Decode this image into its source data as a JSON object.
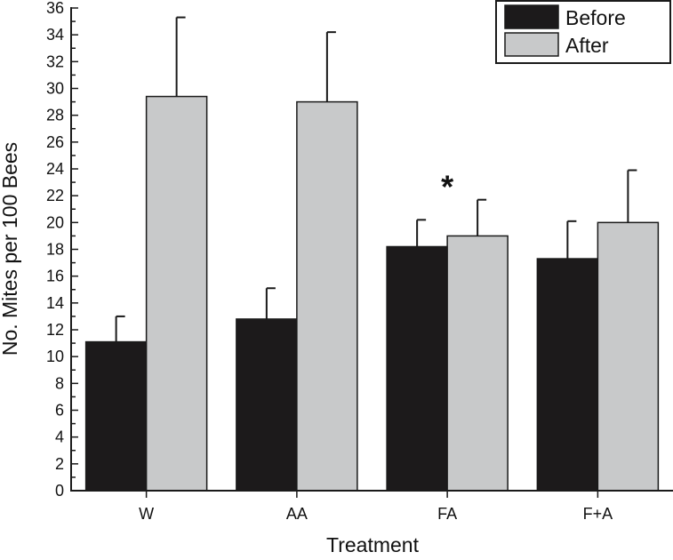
{
  "chart_data": {
    "type": "bar",
    "title": "",
    "xlabel": "Treatment",
    "ylabel": "No. Mites per 100 Bees",
    "ylim": [
      0,
      36
    ],
    "yticks": [
      0,
      2,
      4,
      6,
      8,
      10,
      12,
      14,
      16,
      18,
      20,
      22,
      24,
      26,
      28,
      30,
      32,
      34,
      36
    ],
    "categories": [
      "W",
      "AA",
      "FA",
      "F+A"
    ],
    "series": [
      {
        "name": "Before",
        "color": "#1c1a1b",
        "values": [
          11.1,
          12.8,
          18.2,
          17.3
        ],
        "error": [
          1.9,
          2.3,
          2.0,
          2.8
        ]
      },
      {
        "name": "After",
        "color": "#c8c9ca",
        "values": [
          29.4,
          29.0,
          19.0,
          20.0
        ],
        "error": [
          5.9,
          5.2,
          2.7,
          3.9
        ]
      }
    ],
    "legend": {
      "placement": "top-right"
    },
    "annotations": [
      {
        "text": "*",
        "category": "FA"
      }
    ],
    "grid": false
  }
}
